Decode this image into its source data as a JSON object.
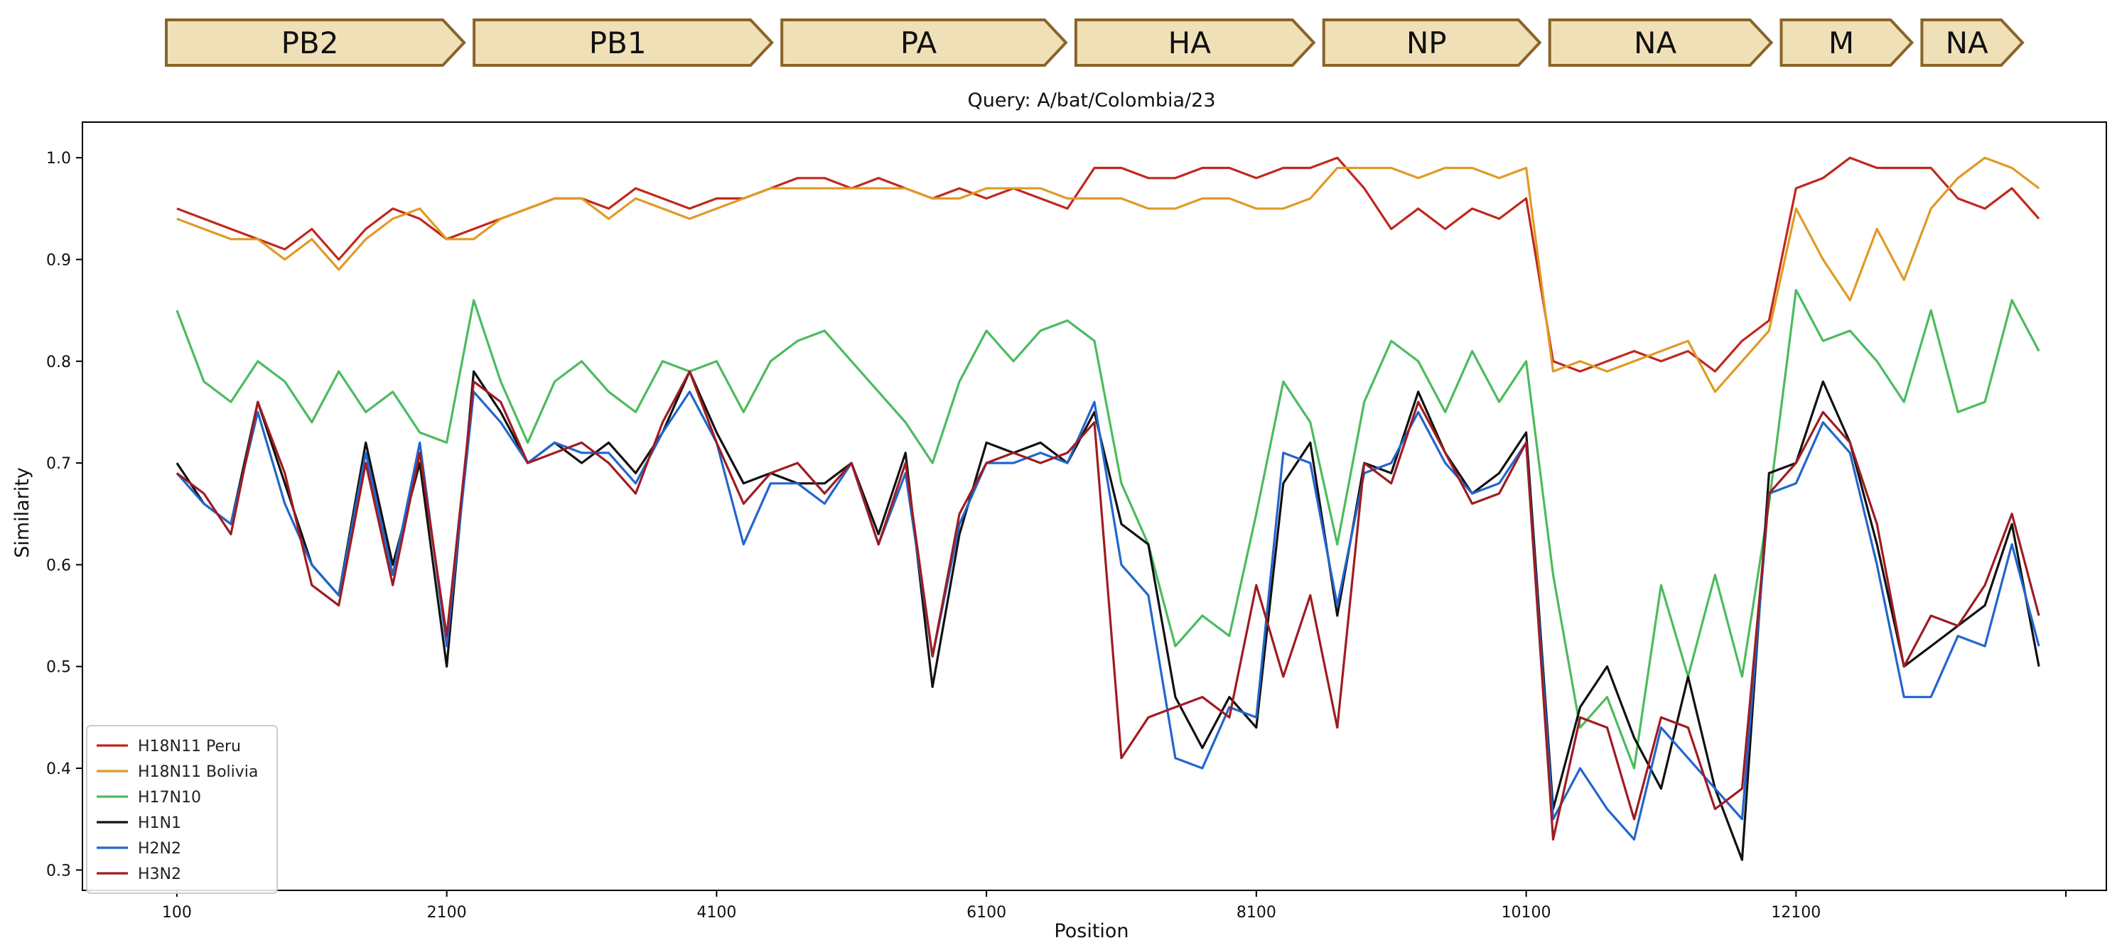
{
  "segments": {
    "fill": "#f0e0b8",
    "stroke": "#8a6428",
    "items": [
      {
        "label": "PB2",
        "start": 1,
        "end": 2341
      },
      {
        "label": "PB1",
        "start": 2342,
        "end": 4682
      },
      {
        "label": "PA",
        "start": 4683,
        "end": 6915
      },
      {
        "label": "HA",
        "start": 6916,
        "end": 8785
      },
      {
        "label": "NP",
        "start": 8786,
        "end": 10483
      },
      {
        "label": "NA",
        "start": 10484,
        "end": 12225
      },
      {
        "label": "M",
        "start": 12226,
        "end": 13252
      },
      {
        "label": "NA",
        "start": 13253,
        "end": 14043
      }
    ]
  },
  "chart_data": {
    "type": "line",
    "title": "Query: A/bat/Colombia/23",
    "xlabel": "Position",
    "ylabel": "Similarity",
    "xlim": [
      -600,
      14400
    ],
    "ylim": [
      0.28,
      1.035
    ],
    "xticks": [
      100,
      2100,
      4100,
      6100,
      8100,
      10100,
      12100,
      14100
    ],
    "xtick_labels": [
      "100",
      "2100",
      "4100",
      "6100",
      "8100",
      "10100",
      "12100",
      ""
    ],
    "yticks": [
      0.3,
      0.4,
      0.5,
      0.6,
      0.7,
      0.8,
      0.9,
      1.0
    ],
    "ytick_labels": [
      "0.3",
      "0.4",
      "0.5",
      "0.6",
      "0.7",
      "0.8",
      "0.9",
      "1.0"
    ],
    "legend_position": "lower-left",
    "x": [
      100,
      300,
      500,
      700,
      900,
      1100,
      1300,
      1500,
      1700,
      1900,
      2100,
      2300,
      2500,
      2700,
      2900,
      3100,
      3300,
      3500,
      3700,
      3900,
      4100,
      4300,
      4500,
      4700,
      4900,
      5100,
      5300,
      5500,
      5700,
      5900,
      6100,
      6300,
      6500,
      6700,
      6900,
      7100,
      7300,
      7500,
      7700,
      7900,
      8100,
      8300,
      8500,
      8700,
      8900,
      9100,
      9300,
      9500,
      9700,
      9900,
      10100,
      10300,
      10500,
      10700,
      10900,
      11100,
      11300,
      11500,
      11700,
      11900,
      12100,
      12300,
      12500,
      12700,
      12900,
      13100,
      13300,
      13500,
      13700,
      13900
    ],
    "series": [
      {
        "name": "H18N11 Peru",
        "color": "#c0281c",
        "values": [
          0.95,
          0.94,
          0.93,
          0.92,
          0.91,
          0.93,
          0.9,
          0.93,
          0.95,
          0.94,
          0.92,
          0.93,
          0.94,
          0.95,
          0.96,
          0.96,
          0.95,
          0.97,
          0.96,
          0.95,
          0.96,
          0.96,
          0.97,
          0.98,
          0.98,
          0.97,
          0.98,
          0.97,
          0.96,
          0.97,
          0.96,
          0.97,
          0.96,
          0.95,
          0.99,
          0.99,
          0.98,
          0.98,
          0.99,
          0.99,
          0.98,
          0.99,
          0.99,
          1.0,
          0.97,
          0.93,
          0.95,
          0.93,
          0.95,
          0.94,
          0.96,
          0.8,
          0.79,
          0.8,
          0.81,
          0.8,
          0.81,
          0.79,
          0.82,
          0.84,
          0.97,
          0.98,
          1.0,
          0.99,
          0.99,
          0.99,
          0.96,
          0.95,
          0.97,
          0.94
        ]
      },
      {
        "name": "H18N11 Bolivia",
        "color": "#e09a24",
        "values": [
          0.94,
          0.93,
          0.92,
          0.92,
          0.9,
          0.92,
          0.89,
          0.92,
          0.94,
          0.95,
          0.92,
          0.92,
          0.94,
          0.95,
          0.96,
          0.96,
          0.94,
          0.96,
          0.95,
          0.94,
          0.95,
          0.96,
          0.97,
          0.97,
          0.97,
          0.97,
          0.97,
          0.97,
          0.96,
          0.96,
          0.97,
          0.97,
          0.97,
          0.96,
          0.96,
          0.96,
          0.95,
          0.95,
          0.96,
          0.96,
          0.95,
          0.95,
          0.96,
          0.99,
          0.99,
          0.99,
          0.98,
          0.99,
          0.99,
          0.98,
          0.99,
          0.79,
          0.8,
          0.79,
          0.8,
          0.81,
          0.82,
          0.77,
          0.8,
          0.83,
          0.95,
          0.9,
          0.86,
          0.93,
          0.88,
          0.95,
          0.98,
          1.0,
          0.99,
          0.97
        ]
      },
      {
        "name": "H17N10",
        "color": "#4cbb5e",
        "values": [
          0.85,
          0.78,
          0.76,
          0.8,
          0.78,
          0.74,
          0.79,
          0.75,
          0.77,
          0.73,
          0.72,
          0.86,
          0.78,
          0.72,
          0.78,
          0.8,
          0.77,
          0.75,
          0.8,
          0.79,
          0.8,
          0.75,
          0.8,
          0.82,
          0.83,
          0.8,
          0.77,
          0.74,
          0.7,
          0.78,
          0.83,
          0.8,
          0.83,
          0.84,
          0.82,
          0.68,
          0.62,
          0.52,
          0.55,
          0.53,
          0.65,
          0.78,
          0.74,
          0.62,
          0.76,
          0.82,
          0.8,
          0.75,
          0.81,
          0.76,
          0.8,
          0.59,
          0.44,
          0.47,
          0.4,
          0.58,
          0.49,
          0.59,
          0.49,
          0.66,
          0.87,
          0.82,
          0.83,
          0.8,
          0.76,
          0.85,
          0.75,
          0.76,
          0.86,
          0.81
        ]
      },
      {
        "name": "H1N1",
        "color": "#111111",
        "values": [
          0.7,
          0.66,
          0.64,
          0.76,
          0.68,
          0.6,
          0.57,
          0.72,
          0.6,
          0.7,
          0.5,
          0.79,
          0.75,
          0.7,
          0.72,
          0.7,
          0.72,
          0.69,
          0.73,
          0.79,
          0.73,
          0.68,
          0.69,
          0.68,
          0.68,
          0.7,
          0.63,
          0.71,
          0.48,
          0.63,
          0.72,
          0.71,
          0.72,
          0.7,
          0.75,
          0.64,
          0.62,
          0.47,
          0.42,
          0.47,
          0.44,
          0.68,
          0.72,
          0.55,
          0.7,
          0.69,
          0.77,
          0.71,
          0.67,
          0.69,
          0.73,
          0.36,
          0.46,
          0.5,
          0.43,
          0.38,
          0.49,
          0.38,
          0.31,
          0.69,
          0.7,
          0.78,
          0.72,
          0.62,
          0.5,
          0.52,
          0.54,
          0.56,
          0.64,
          0.5
        ]
      },
      {
        "name": "H2N2",
        "color": "#2266cc",
        "values": [
          0.69,
          0.66,
          0.64,
          0.75,
          0.66,
          0.6,
          0.57,
          0.71,
          0.59,
          0.72,
          0.52,
          0.77,
          0.74,
          0.7,
          0.72,
          0.71,
          0.71,
          0.68,
          0.73,
          0.77,
          0.72,
          0.62,
          0.68,
          0.68,
          0.66,
          0.7,
          0.62,
          0.69,
          0.51,
          0.64,
          0.7,
          0.7,
          0.71,
          0.7,
          0.76,
          0.6,
          0.57,
          0.41,
          0.4,
          0.46,
          0.45,
          0.71,
          0.7,
          0.56,
          0.69,
          0.7,
          0.75,
          0.7,
          0.67,
          0.68,
          0.72,
          0.35,
          0.4,
          0.36,
          0.33,
          0.44,
          0.41,
          0.38,
          0.35,
          0.67,
          0.68,
          0.74,
          0.71,
          0.6,
          0.47,
          0.47,
          0.53,
          0.52,
          0.62,
          0.52
        ]
      },
      {
        "name": "H3N2",
        "color": "#9e1c22",
        "values": [
          0.69,
          0.67,
          0.63,
          0.76,
          0.69,
          0.58,
          0.56,
          0.7,
          0.58,
          0.71,
          0.53,
          0.78,
          0.76,
          0.7,
          0.71,
          0.72,
          0.7,
          0.67,
          0.74,
          0.79,
          0.72,
          0.66,
          0.69,
          0.7,
          0.67,
          0.7,
          0.62,
          0.7,
          0.51,
          0.65,
          0.7,
          0.71,
          0.7,
          0.71,
          0.74,
          0.41,
          0.45,
          0.46,
          0.47,
          0.45,
          0.58,
          0.49,
          0.57,
          0.44,
          0.7,
          0.68,
          0.76,
          0.71,
          0.66,
          0.67,
          0.72,
          0.33,
          0.45,
          0.44,
          0.35,
          0.45,
          0.44,
          0.36,
          0.38,
          0.67,
          0.7,
          0.75,
          0.72,
          0.64,
          0.5,
          0.55,
          0.54,
          0.58,
          0.65,
          0.55
        ]
      }
    ]
  }
}
